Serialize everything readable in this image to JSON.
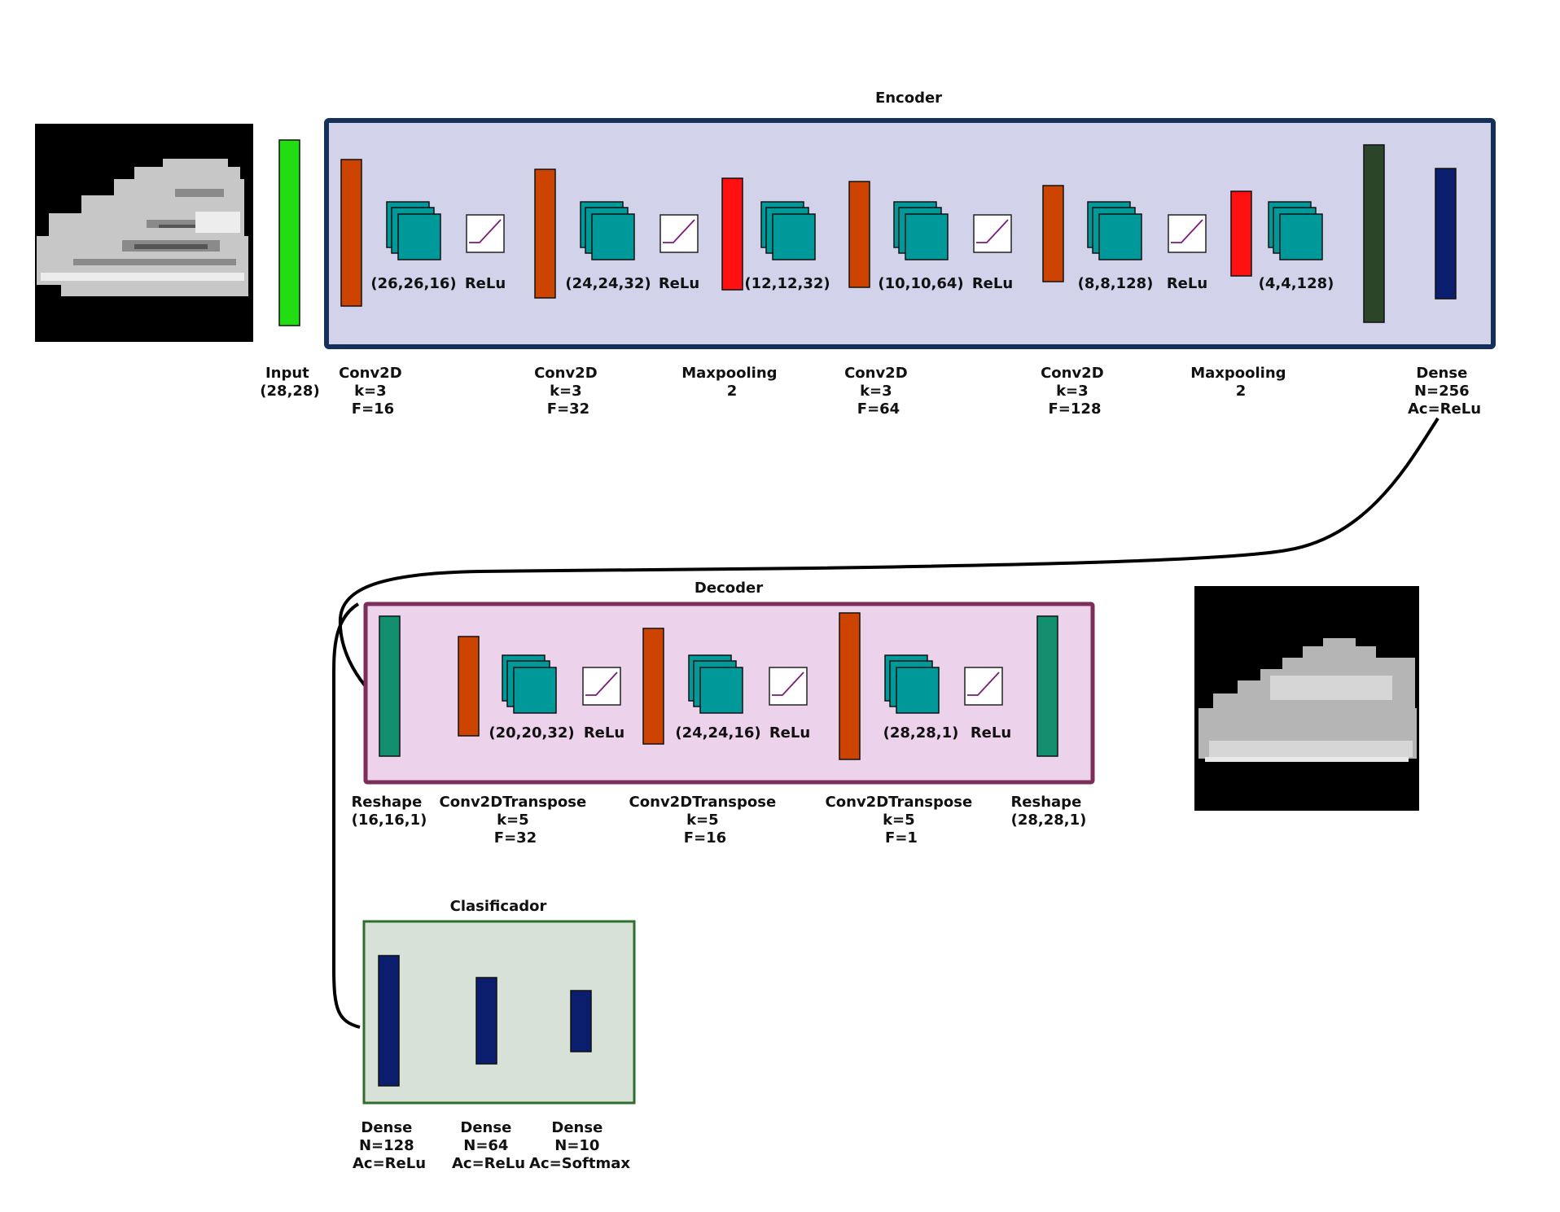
{
  "encoder": {
    "title": "Encoder",
    "input_label": [
      "Input",
      "(28,28)"
    ],
    "layers": {
      "conv1": [
        "Conv2D",
        "k=3",
        "F=16"
      ],
      "conv2": [
        "Conv2D",
        "k=3",
        "F=32"
      ],
      "pool1": [
        "Maxpooling",
        "2"
      ],
      "conv3": [
        "Conv2D",
        "k=3",
        "F=64"
      ],
      "conv4": [
        "Conv2D",
        "k=3",
        "F=128"
      ],
      "pool2": [
        "Maxpooling",
        "2"
      ],
      "dense": [
        "Dense",
        "N=256",
        "Ac=ReLu"
      ]
    },
    "shapes": [
      "(26,26,16)",
      "(24,24,32)",
      "(12,12,32)",
      "(10,10,64)",
      "(8,8,128)",
      "(4,4,128)"
    ],
    "activation": "ReLu"
  },
  "decoder": {
    "title": "Decoder",
    "layers": {
      "reshape1": [
        "Reshape",
        "(16,16,1)"
      ],
      "deconv1": [
        "Conv2DTranspose",
        "k=5",
        "F=32"
      ],
      "deconv2": [
        "Conv2DTranspose",
        "k=5",
        "F=16"
      ],
      "deconv3": [
        "Conv2DTranspose",
        "k=5",
        "F=1"
      ],
      "reshape2": [
        "Reshape",
        "(28,28,1)"
      ]
    },
    "shapes": [
      "(20,20,32)",
      "(24,24,16)",
      "(28,28,1)"
    ],
    "activation": "ReLu"
  },
  "classifier": {
    "title": "Clasificador",
    "layers": {
      "dense1": [
        "Dense",
        "N=128",
        "Ac=ReLu"
      ],
      "dense2": [
        "Dense",
        "N=64",
        "Ac=ReLu"
      ],
      "dense3": [
        "Dense",
        "N=10",
        "Ac=Softmax"
      ]
    }
  },
  "colors": {
    "encoder_fill": "#d2d3ea",
    "encoder_border": "#15305a",
    "decoder_fill": "#ecd2ea",
    "decoder_border": "#7b2e5a",
    "classifier_fill": "#d7e1d7",
    "classifier_border": "#2e6e2e",
    "input_bar": "#22dd11",
    "conv_bar": "#cc4400",
    "pool_bar": "#ff1111",
    "flatten_bar": "#2b4528",
    "dense_bar": "#0b1e6e",
    "reshape_bar": "#138f70",
    "feature_map": "#009999",
    "relu_line": "#7a1a7a"
  },
  "icons": [
    "shoe-input-image",
    "shoe-output-image",
    "relu-icon",
    "feature-map-icon"
  ]
}
